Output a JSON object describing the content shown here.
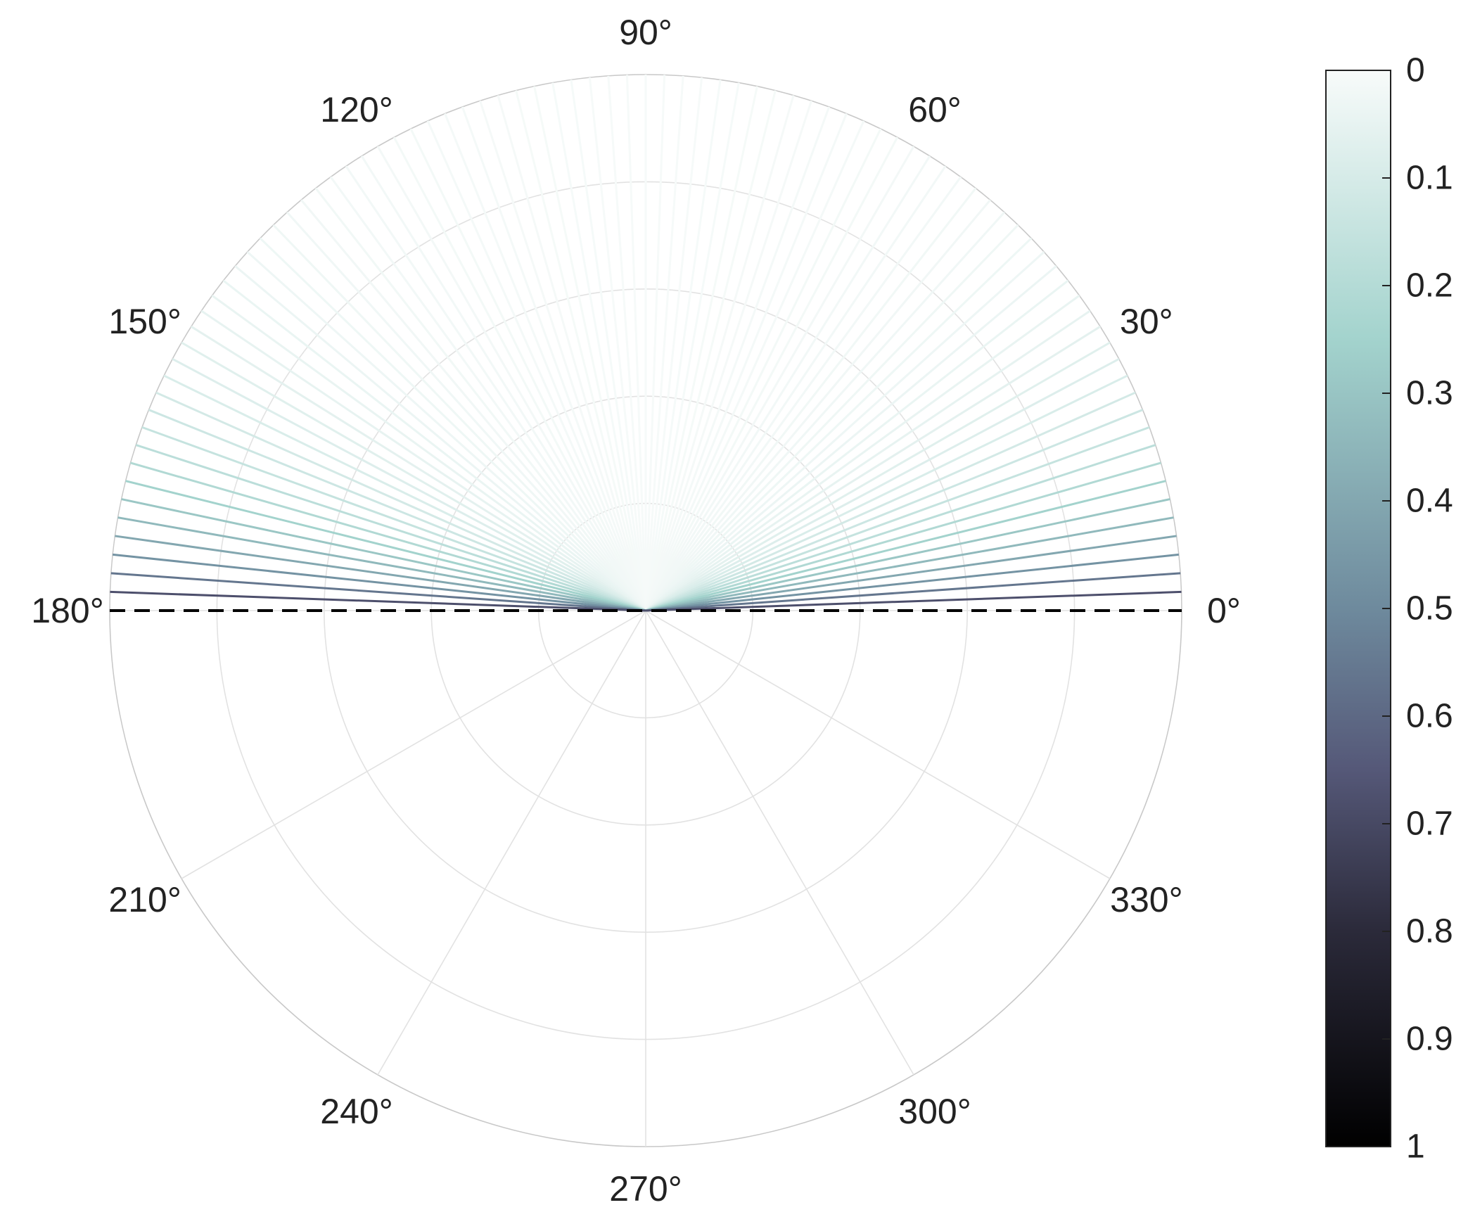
{
  "chart_data": {
    "type": "polar-rays",
    "title": "",
    "angle_ticks": [
      "0°",
      "30°",
      "60°",
      "90°",
      "120°",
      "150°",
      "180°",
      "210°",
      "240°",
      "270°",
      "300°",
      "330°"
    ],
    "angle_tick_values": [
      0,
      30,
      60,
      90,
      120,
      150,
      180,
      210,
      240,
      270,
      300,
      330
    ],
    "radial_rings": 5,
    "radial_ticks_shown": false,
    "grid": true,
    "reference_line": {
      "angles": [
        0,
        180
      ],
      "style": "dashed",
      "color": "#000000"
    },
    "rays": {
      "description_angles_deg_from_horizontal": [
        2,
        4,
        6,
        8,
        10,
        12,
        14,
        16,
        18,
        20,
        22,
        24,
        26,
        28,
        30,
        32,
        34,
        36,
        38,
        40,
        42,
        44,
        46,
        48,
        50,
        52,
        54,
        56,
        58,
        60,
        62,
        64,
        66,
        68,
        70,
        72,
        74,
        76,
        78,
        80,
        82,
        84,
        86,
        88,
        90
      ],
      "color_values": [
        0.68,
        0.56,
        0.47,
        0.4,
        0.34,
        0.29,
        0.25,
        0.21,
        0.18,
        0.15,
        0.13,
        0.11,
        0.09,
        0.08,
        0.07,
        0.06,
        0.05,
        0.045,
        0.04,
        0.035,
        0.03,
        0.028,
        0.026,
        0.024,
        0.022,
        0.02,
        0.019,
        0.018,
        0.017,
        0.016,
        0.015,
        0.014,
        0.013,
        0.012,
        0.011,
        0.01,
        0.01,
        0.009,
        0.009,
        0.008,
        0.008,
        0.007,
        0.007,
        0.006,
        0.006
      ],
      "symmetric_about_90": true
    },
    "colorbar": {
      "ticks": [
        "0",
        "0.1",
        "0.2",
        "0.3",
        "0.4",
        "0.5",
        "0.6",
        "0.7",
        "0.8",
        "0.9",
        "1"
      ],
      "range": [
        0,
        1
      ],
      "direction": "reversed",
      "colormap": "bone-teal",
      "stops": [
        {
          "value": 0.0,
          "color": "#f8fbfa"
        },
        {
          "value": 0.25,
          "color": "#a3d3cd"
        },
        {
          "value": 0.5,
          "color": "#6e8a9d"
        },
        {
          "value": 0.65,
          "color": "#555878"
        },
        {
          "value": 0.8,
          "color": "#2b2a3a"
        },
        {
          "value": 1.0,
          "color": "#000000"
        }
      ]
    }
  }
}
